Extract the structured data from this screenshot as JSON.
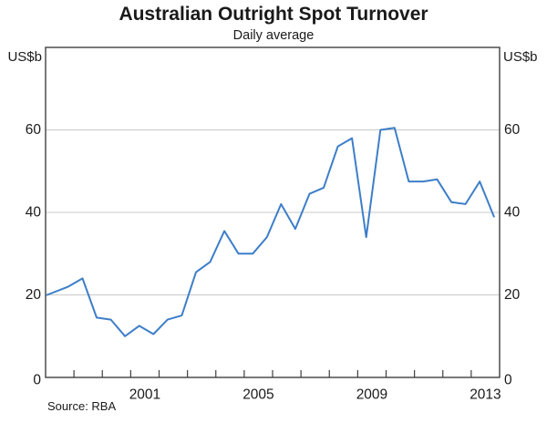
{
  "header": {
    "title": "Australian Outright Spot Turnover",
    "subtitle": "Daily average"
  },
  "axes": {
    "y_unit_left": "US$b",
    "y_unit_right": "US$b",
    "y_tick_labels": [
      "0",
      "20",
      "40",
      "60"
    ],
    "x_tick_labels": [
      "2001",
      "2005",
      "2009",
      "2013"
    ]
  },
  "source": "Source: RBA",
  "colors": {
    "line": "#3d7ec8",
    "gridline": "#c9c9c9",
    "frame": "#404040",
    "text": "#1a1a1a"
  },
  "chart_data": {
    "type": "line",
    "title": "Australian Outright Spot Turnover",
    "subtitle": "Daily average",
    "xlabel": "",
    "ylabel": "US$b",
    "ylim": [
      0,
      80
    ],
    "yticks": [
      0,
      20,
      40,
      60
    ],
    "xlim": [
      1998,
      2014
    ],
    "x_minor_ticks": [
      1999,
      2000,
      2001,
      2002,
      2003,
      2004,
      2005,
      2006,
      2007,
      2008,
      2009,
      2010,
      2011,
      2012,
      2013
    ],
    "x_labeled_years": [
      2001,
      2005,
      2009,
      2013
    ],
    "grid": "horizontal",
    "legend": "none",
    "series": [
      {
        "name": "Outright spot turnover, daily average (US$b)",
        "labels": [
          "1998 H1",
          "1998 H2",
          "1999 H1",
          "1999 H2",
          "2000 H1",
          "2000 H2",
          "2001 H1",
          "2001 H2",
          "2002 H1",
          "2002 H2",
          "2003 H1",
          "2003 H2",
          "2004 H1",
          "2004 H2",
          "2005 H1",
          "2005 H2",
          "2006 H1",
          "2006 H2",
          "2007 H1",
          "2007 H2",
          "2008 H1",
          "2008 H2",
          "2009 H1",
          "2009 H2",
          "2010 H1",
          "2010 H2",
          "2011 H1",
          "2011 H2",
          "2012 H1",
          "2012 H2",
          "2013 H1",
          "2013 H2"
        ],
        "x": [
          1998.05,
          1998.8,
          1999.3,
          1999.8,
          2000.3,
          2000.8,
          2001.3,
          2001.8,
          2002.3,
          2002.8,
          2003.3,
          2003.8,
          2004.3,
          2004.8,
          2005.3,
          2005.8,
          2006.3,
          2006.8,
          2007.3,
          2007.8,
          2008.3,
          2008.8,
          2009.3,
          2009.8,
          2010.3,
          2010.8,
          2011.3,
          2011.8,
          2012.3,
          2012.8,
          2013.3,
          2013.8
        ],
        "values": [
          20,
          22,
          24,
          14.5,
          14,
          10,
          12.5,
          10.5,
          14,
          15,
          25.5,
          28,
          35.5,
          30,
          30,
          34,
          42,
          36,
          44.5,
          46,
          56,
          58,
          34,
          60,
          60.5,
          47.5,
          47.5,
          48,
          42.5,
          42,
          47.5,
          39
        ]
      }
    ]
  }
}
